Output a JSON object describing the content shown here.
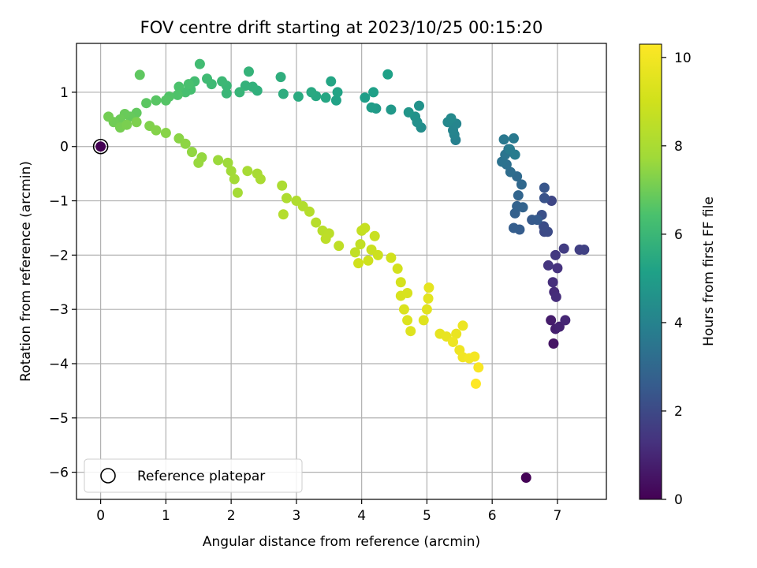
{
  "chart_data": {
    "type": "scatter",
    "title": "FOV centre drift starting at 2023/10/25 00:15:20",
    "xlabel": "Angular distance from reference (arcmin)",
    "ylabel": "Rotation from reference (arcmin)",
    "xlim": [
      -0.37,
      7.75
    ],
    "ylim": [
      -6.5,
      1.9
    ],
    "x_ticks": [
      0,
      1,
      2,
      3,
      4,
      5,
      6,
      7
    ],
    "y_ticks": [
      1,
      0,
      -1,
      -2,
      -3,
      -4,
      -5,
      -6
    ],
    "x_tick_labels": [
      "0",
      "1",
      "2",
      "3",
      "4",
      "5",
      "6",
      "7"
    ],
    "y_tick_labels": [
      "1",
      "0",
      "−1",
      "−2",
      "−3",
      "−4",
      "−5",
      "−6"
    ],
    "grid": true,
    "colormap": "viridis",
    "colorbar": {
      "label": "Hours from first FF file",
      "range": [
        0,
        10.3
      ],
      "ticks": [
        0,
        2,
        4,
        6,
        8,
        10
      ],
      "tick_labels": [
        "0",
        "2",
        "4",
        "6",
        "8",
        "10"
      ]
    },
    "legend": {
      "position": "lower-left",
      "entries": [
        {
          "label": "Reference platepar",
          "marker": "open-circle",
          "color": "#000000"
        }
      ]
    },
    "reference_point": {
      "x": 0,
      "y": 0,
      "hours": 0
    },
    "points": [
      [
        6.52,
        -6.1,
        0.05
      ],
      [
        6.94,
        -3.63,
        0.5
      ],
      [
        6.9,
        -3.2,
        0.7
      ],
      [
        6.97,
        -3.36,
        0.8
      ],
      [
        7.03,
        -3.32,
        0.9
      ],
      [
        7.12,
        -3.2,
        1.0
      ],
      [
        6.95,
        -2.68,
        1.1
      ],
      [
        6.98,
        -2.77,
        1.15
      ],
      [
        6.93,
        -2.5,
        1.2
      ],
      [
        7.0,
        -2.24,
        1.3
      ],
      [
        6.86,
        -2.19,
        1.4
      ],
      [
        6.97,
        -2.0,
        1.5
      ],
      [
        7.1,
        -1.88,
        1.6
      ],
      [
        7.34,
        -1.9,
        1.7
      ],
      [
        7.41,
        -1.9,
        1.75
      ],
      [
        6.91,
        -1.0,
        1.9
      ],
      [
        6.8,
        -1.57,
        2.0
      ],
      [
        6.85,
        -1.57,
        2.05
      ],
      [
        6.79,
        -1.47,
        2.1
      ],
      [
        6.76,
        -1.26,
        2.2
      ],
      [
        6.8,
        -0.95,
        2.3
      ],
      [
        6.8,
        -0.76,
        2.4
      ],
      [
        6.61,
        -1.35,
        2.5
      ],
      [
        6.69,
        -1.35,
        2.55
      ],
      [
        6.42,
        -1.53,
        2.6
      ],
      [
        6.33,
        -1.5,
        2.65
      ],
      [
        6.35,
        -1.23,
        2.75
      ],
      [
        6.38,
        -1.1,
        2.8
      ],
      [
        6.47,
        -1.12,
        2.85
      ],
      [
        6.4,
        -0.9,
        2.9
      ],
      [
        6.45,
        -0.7,
        3.0
      ],
      [
        6.38,
        -0.55,
        3.1
      ],
      [
        6.28,
        -0.47,
        3.2
      ],
      [
        6.22,
        -0.33,
        3.3
      ],
      [
        6.15,
        -0.28,
        3.4
      ],
      [
        6.2,
        -0.15,
        3.45
      ],
      [
        6.25,
        -0.05,
        3.5
      ],
      [
        6.18,
        0.13,
        3.6
      ],
      [
        6.33,
        0.15,
        3.65
      ],
      [
        6.27,
        -0.05,
        3.7
      ],
      [
        6.35,
        -0.15,
        3.75
      ],
      [
        5.44,
        0.12,
        3.9
      ],
      [
        5.42,
        0.22,
        4.0
      ],
      [
        5.4,
        0.3,
        4.05
      ],
      [
        5.45,
        0.42,
        4.1
      ],
      [
        5.32,
        0.45,
        4.2
      ],
      [
        5.37,
        0.52,
        4.25
      ],
      [
        4.91,
        0.35,
        4.4
      ],
      [
        4.85,
        0.45,
        4.5
      ],
      [
        4.82,
        0.55,
        4.55
      ],
      [
        4.88,
        0.75,
        4.6
      ],
      [
        4.72,
        0.63,
        4.7
      ],
      [
        4.45,
        0.68,
        4.8
      ],
      [
        4.22,
        0.7,
        4.9
      ],
      [
        4.15,
        0.72,
        5.0
      ],
      [
        4.05,
        0.9,
        5.05
      ],
      [
        4.18,
        1.0,
        5.1
      ],
      [
        4.4,
        1.33,
        5.15
      ],
      [
        3.61,
        0.85,
        5.2
      ],
      [
        3.63,
        1.0,
        5.25
      ],
      [
        3.53,
        1.2,
        5.3
      ],
      [
        3.45,
        0.9,
        5.35
      ],
      [
        3.3,
        0.93,
        5.4
      ],
      [
        3.23,
        1.0,
        5.45
      ],
      [
        3.03,
        0.92,
        5.5
      ],
      [
        2.8,
        0.97,
        5.6
      ],
      [
        2.76,
        1.28,
        5.65
      ],
      [
        2.4,
        1.03,
        5.7
      ],
      [
        2.33,
        1.1,
        5.75
      ],
      [
        2.22,
        1.12,
        5.8
      ],
      [
        2.27,
        1.38,
        5.85
      ],
      [
        2.13,
        1.0,
        5.9
      ],
      [
        1.93,
        0.98,
        5.95
      ],
      [
        1.93,
        1.12,
        6.0
      ],
      [
        1.86,
        1.2,
        6.05
      ],
      [
        1.7,
        1.15,
        6.1
      ],
      [
        1.63,
        1.25,
        6.15
      ],
      [
        1.52,
        1.52,
        6.2
      ],
      [
        1.44,
        1.2,
        6.25
      ],
      [
        1.38,
        1.05,
        6.3
      ],
      [
        1.3,
        1.0,
        6.35
      ],
      [
        1.35,
        1.15,
        6.4
      ],
      [
        1.2,
        1.1,
        6.45
      ],
      [
        1.18,
        0.95,
        6.5
      ],
      [
        1.05,
        0.92,
        6.55
      ],
      [
        1.0,
        0.85,
        6.6
      ],
      [
        0.85,
        0.85,
        6.65
      ],
      [
        0.7,
        0.8,
        6.7
      ],
      [
        0.6,
        1.32,
        6.75
      ],
      [
        0.55,
        0.62,
        6.8
      ],
      [
        0.45,
        0.55,
        6.85
      ],
      [
        0.37,
        0.6,
        6.9
      ],
      [
        0.3,
        0.5,
        6.95
      ],
      [
        0.2,
        0.45,
        7.0
      ],
      [
        0.12,
        0.55,
        7.05
      ],
      [
        0.3,
        0.35,
        7.1
      ],
      [
        0.4,
        0.4,
        7.15
      ],
      [
        0.55,
        0.45,
        7.2
      ],
      [
        0.75,
        0.38,
        7.25
      ],
      [
        0.85,
        0.3,
        7.3
      ],
      [
        1.0,
        0.25,
        7.35
      ],
      [
        1.2,
        0.15,
        7.4
      ],
      [
        1.3,
        0.05,
        7.45
      ],
      [
        1.4,
        -0.1,
        7.5
      ],
      [
        1.55,
        -0.2,
        7.55
      ],
      [
        1.5,
        -0.3,
        7.6
      ],
      [
        1.8,
        -0.25,
        7.65
      ],
      [
        1.95,
        -0.3,
        7.7
      ],
      [
        2.0,
        -0.45,
        7.75
      ],
      [
        2.05,
        -0.6,
        7.8
      ],
      [
        2.1,
        -0.85,
        7.85
      ],
      [
        2.25,
        -0.45,
        7.9
      ],
      [
        2.4,
        -0.5,
        7.95
      ],
      [
        2.45,
        -0.6,
        8.0
      ],
      [
        2.78,
        -0.72,
        8.05
      ],
      [
        2.85,
        -0.95,
        8.1
      ],
      [
        3.0,
        -1.0,
        8.15
      ],
      [
        3.1,
        -1.1,
        8.2
      ],
      [
        2.8,
        -1.25,
        8.25
      ],
      [
        3.2,
        -1.2,
        8.3
      ],
      [
        3.3,
        -1.4,
        8.35
      ],
      [
        3.4,
        -1.55,
        8.4
      ],
      [
        3.5,
        -1.6,
        8.45
      ],
      [
        3.45,
        -1.7,
        8.5
      ],
      [
        3.65,
        -1.83,
        8.55
      ],
      [
        3.9,
        -1.95,
        8.6
      ],
      [
        3.98,
        -1.8,
        8.65
      ],
      [
        4.0,
        -1.55,
        8.7
      ],
      [
        4.05,
        -1.5,
        8.75
      ],
      [
        4.2,
        -1.65,
        8.8
      ],
      [
        4.15,
        -1.9,
        8.85
      ],
      [
        4.25,
        -2.0,
        8.9
      ],
      [
        4.1,
        -2.1,
        8.95
      ],
      [
        3.95,
        -2.15,
        9.0
      ],
      [
        4.45,
        -2.05,
        9.05
      ],
      [
        4.55,
        -2.25,
        9.1
      ],
      [
        4.6,
        -2.5,
        9.15
      ],
      [
        4.6,
        -2.75,
        9.2
      ],
      [
        4.7,
        -2.7,
        9.25
      ],
      [
        4.65,
        -3.0,
        9.3
      ],
      [
        4.7,
        -3.2,
        9.35
      ],
      [
        4.75,
        -3.4,
        9.4
      ],
      [
        4.95,
        -3.2,
        9.45
      ],
      [
        5.0,
        -3.0,
        9.5
      ],
      [
        5.02,
        -2.8,
        9.55
      ],
      [
        5.03,
        -2.6,
        9.6
      ],
      [
        5.2,
        -3.45,
        9.65
      ],
      [
        5.3,
        -3.5,
        9.7
      ],
      [
        5.45,
        -3.45,
        9.75
      ],
      [
        5.55,
        -3.3,
        9.8
      ],
      [
        5.4,
        -3.6,
        9.85
      ],
      [
        5.5,
        -3.75,
        9.9
      ],
      [
        5.55,
        -3.88,
        9.95
      ],
      [
        5.65,
        -3.9,
        10.0
      ],
      [
        5.73,
        -3.87,
        10.05
      ],
      [
        5.79,
        -4.07,
        10.15
      ],
      [
        5.75,
        -4.37,
        10.3
      ]
    ]
  }
}
